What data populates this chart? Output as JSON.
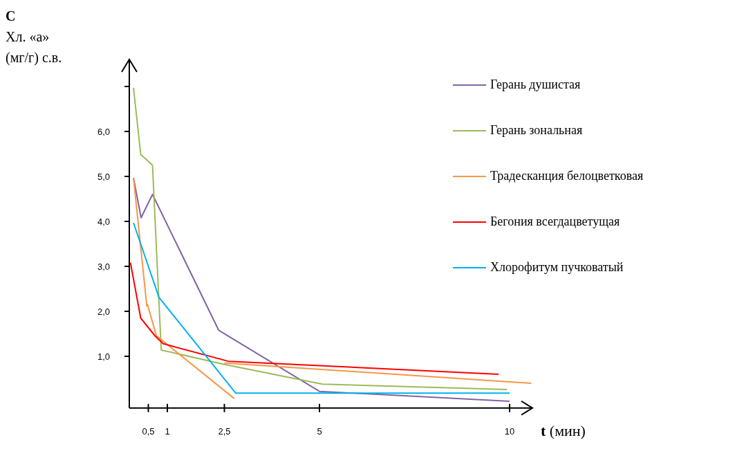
{
  "chart_data": {
    "type": "line",
    "ylabel": "C\nХл. «а»\n(мг/г) с.в.",
    "xlabel": "t (мин)",
    "xlim": [
      0,
      10.6
    ],
    "ylim": [
      -0.15,
      7.6
    ],
    "xticks": [
      {
        "value": 0.5,
        "label": "0,5"
      },
      {
        "value": 1,
        "label": "1"
      },
      {
        "value": 2.5,
        "label": "2,5"
      },
      {
        "value": 5,
        "label": "5"
      },
      {
        "value": 10,
        "label": "10"
      }
    ],
    "yticks": [
      {
        "value": 1,
        "label": "1,0"
      },
      {
        "value": 2,
        "label": "2,0"
      },
      {
        "value": 3,
        "label": "3,0"
      },
      {
        "value": 4,
        "label": "4,0"
      },
      {
        "value": 5,
        "label": "5,0"
      },
      {
        "value": 6,
        "label": "6,0"
      },
      {
        "value": 7,
        "label": null
      }
    ],
    "grid": false,
    "legend": "top right",
    "marker": "none",
    "line_style": "solid",
    "series": [
      {
        "name": "Герань душистая",
        "color": "#8064a2",
        "x": [
          0.11,
          0.31,
          0.61,
          2.35,
          5,
          10
        ],
        "values": [
          4.97,
          4.08,
          4.6,
          1.58,
          0.22,
          0
        ]
      },
      {
        "name": "Герань зональная",
        "color": "#9bbb59",
        "x": [
          0.11,
          0.3,
          0.61,
          0.84,
          2.5,
          5.08,
          9.93
        ],
        "values": [
          6.97,
          5.49,
          5.25,
          1.14,
          0.82,
          0.38,
          0.26
        ]
      },
      {
        "name": "Традесканция белоцветковая",
        "color": "#f79646",
        "x": [
          0.11,
          0.46,
          0.48,
          0.71,
          2.76
        ],
        "values": [
          4.97,
          2.12,
          2.15,
          1.46,
          0.06
        ]
      },
      {
        "color": "#f79646",
        "x": [
          2.5,
          10.57
        ],
        "values": [
          0.85,
          0.4
        ]
      },
      {
        "name": "Бегония всегдацветущая",
        "color": "#ff0000",
        "x": [
          0.03,
          0.3,
          0.68,
          0.89,
          2.6,
          9.71
        ],
        "values": [
          3.08,
          1.85,
          1.45,
          1.28,
          0.89,
          0.6
        ]
      },
      {
        "name": "Хлорофитум пучковатый",
        "color": "#00b0f0",
        "x": [
          0.11,
          0.78,
          2.8,
          10
        ],
        "values": [
          3.97,
          2.31,
          0.18,
          0.18
        ]
      }
    ]
  }
}
